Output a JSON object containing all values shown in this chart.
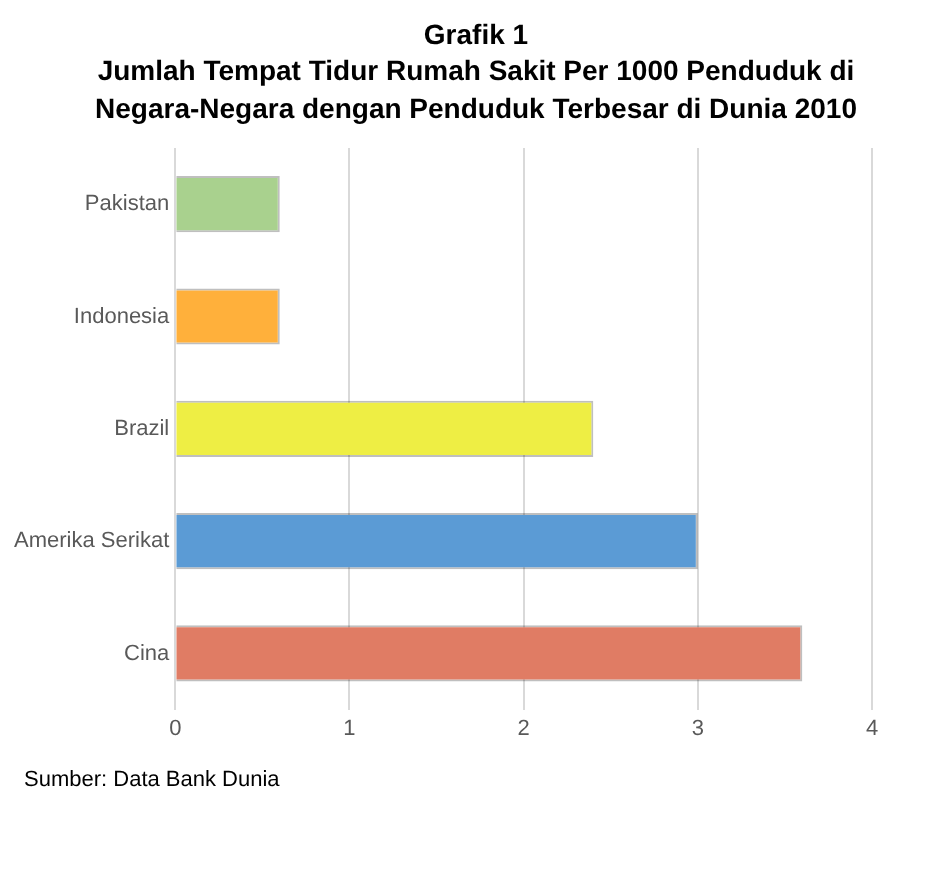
{
  "chart_data": {
    "type": "bar",
    "orientation": "horizontal",
    "title": "Grafik 1",
    "subtitle": "Jumlah Tempat Tidur Rumah Sakit Per 1000 Penduduk di Negara-Negara dengan Penduduk Terbesar di Dunia 2010",
    "categories": [
      "Pakistan",
      "Indonesia",
      "Brazil",
      "Amerika Serikat",
      "Cina"
    ],
    "values": [
      0.6,
      0.6,
      2.4,
      3.0,
      3.6
    ],
    "colors": [
      "#a9d18e",
      "#ffb03b",
      "#eeee44",
      "#5b9bd5",
      "#e07c64"
    ],
    "xlim": [
      0,
      4
    ],
    "xticks": [
      0,
      1,
      2,
      3,
      4
    ],
    "grid": "x",
    "legend": false,
    "annotations": [
      "Sumber: Data Bank Dunia"
    ]
  }
}
